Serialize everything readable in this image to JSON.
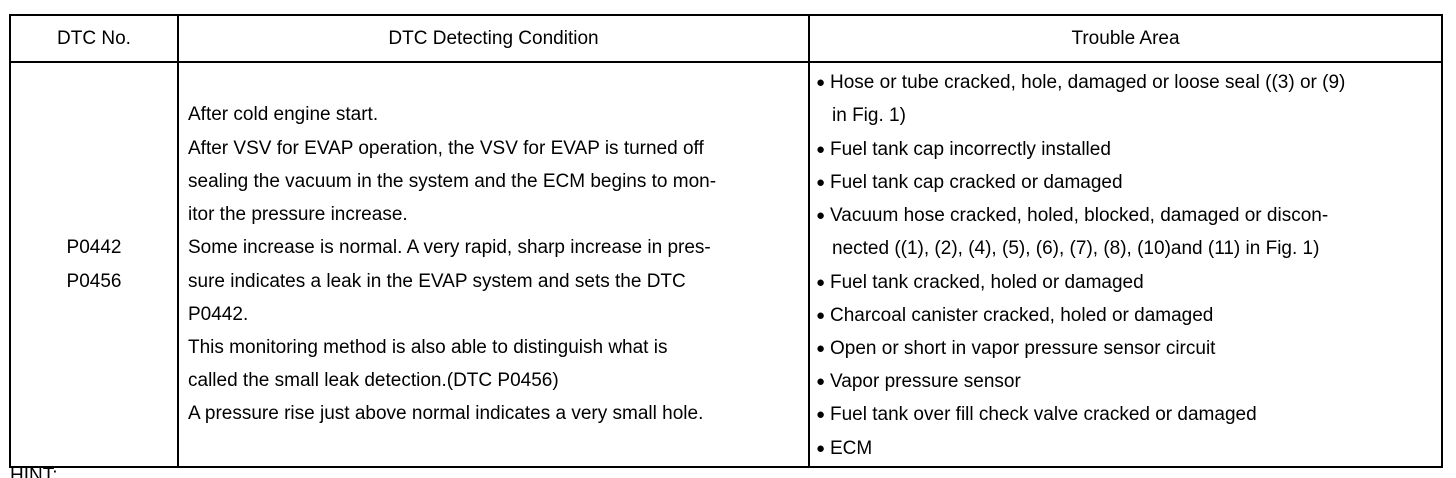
{
  "table": {
    "headers": {
      "code": "DTC No.",
      "condition": "DTC Detecting Condition",
      "trouble": "Trouble Area"
    },
    "codes": [
      "P0442",
      "P0456"
    ],
    "condition_lines": [
      "After cold engine start.",
      "After VSV for EVAP operation, the VSV for EVAP is turned off",
      "sealing the vacuum in the system and the ECM begins to mon-",
      "itor the pressure increase.",
      "Some increase is normal. A very rapid, sharp increase in pres-",
      "sure indicates a leak in the EVAP system and sets the DTC",
      "P0442.",
      "This monitoring method is also able to distinguish what is",
      "called the small leak detection.(DTC P0456)",
      "A pressure rise just above normal indicates a very small hole."
    ],
    "trouble_items": [
      {
        "lines": [
          "Hose or tube cracked, hole, damaged or loose seal ((3) or (9)",
          "in Fig. 1)"
        ]
      },
      {
        "lines": [
          "Fuel tank cap incorrectly installed"
        ]
      },
      {
        "lines": [
          "Fuel tank cap cracked or damaged"
        ]
      },
      {
        "lines": [
          "Vacuum hose cracked, holed, blocked, damaged or discon-",
          "nected ((1), (2), (4), (5), (6), (7), (8), (10)and (11) in Fig. 1)"
        ]
      },
      {
        "lines": [
          "Fuel tank cracked, holed or damaged"
        ]
      },
      {
        "lines": [
          "Charcoal canister cracked, holed or damaged"
        ]
      },
      {
        "lines": [
          "Open or short in vapor pressure sensor circuit"
        ]
      },
      {
        "lines": [
          "Vapor pressure sensor"
        ]
      },
      {
        "lines": [
          "Fuel tank over fill check valve cracked or damaged"
        ]
      },
      {
        "lines": [
          "ECM"
        ]
      }
    ],
    "bullet_char": "●"
  },
  "footer": {
    "cut_text": "HINT:"
  }
}
